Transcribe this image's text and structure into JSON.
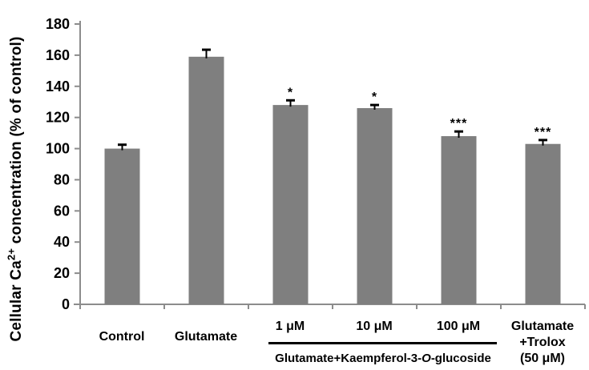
{
  "figure": {
    "ylabel_pre": "Cellular Ca",
    "ylabel_sup": "2+",
    "ylabel_post": " concentration (% of control)"
  },
  "xaxis": {
    "control": "Control",
    "glutamate": "Glutamate",
    "dose_1": "1 μM",
    "dose_10": "10 μM",
    "dose_100": "100 μM",
    "trolox_line1": "Glutamate",
    "trolox_line2": "+Trolox",
    "trolox_line3": "(50 μM)",
    "group_pre": "Glutamate+Kaempferol-3-",
    "group_italic": "O",
    "group_post": "-glucoside"
  },
  "chart_data": {
    "type": "bar",
    "title": "",
    "xlabel": "",
    "ylabel": "Cellular Ca2+ concentration (% of control)",
    "categories": [
      "Control",
      "Glutamate",
      "1 μM",
      "10 μM",
      "100 μM",
      "Glutamate +Trolox (50 μM)"
    ],
    "values": [
      100,
      159,
      128,
      126,
      108,
      103
    ],
    "error_up": [
      2.5,
      4.5,
      3,
      2,
      3,
      2.5
    ],
    "significance": [
      "",
      "",
      "*",
      "*",
      "***",
      "***"
    ],
    "group_annotation": {
      "text": "Glutamate+Kaempferol-3-O-glucoside",
      "from_category": "1 μM",
      "to_category": "100 μM"
    },
    "ylim": [
      0,
      180
    ],
    "ytick_step": 20,
    "grid": false,
    "legend": false,
    "bar_color": "#7f7f7f",
    "axis_color": "#8c8c8c",
    "error_color": "#000000",
    "text_color": "#000000"
  }
}
